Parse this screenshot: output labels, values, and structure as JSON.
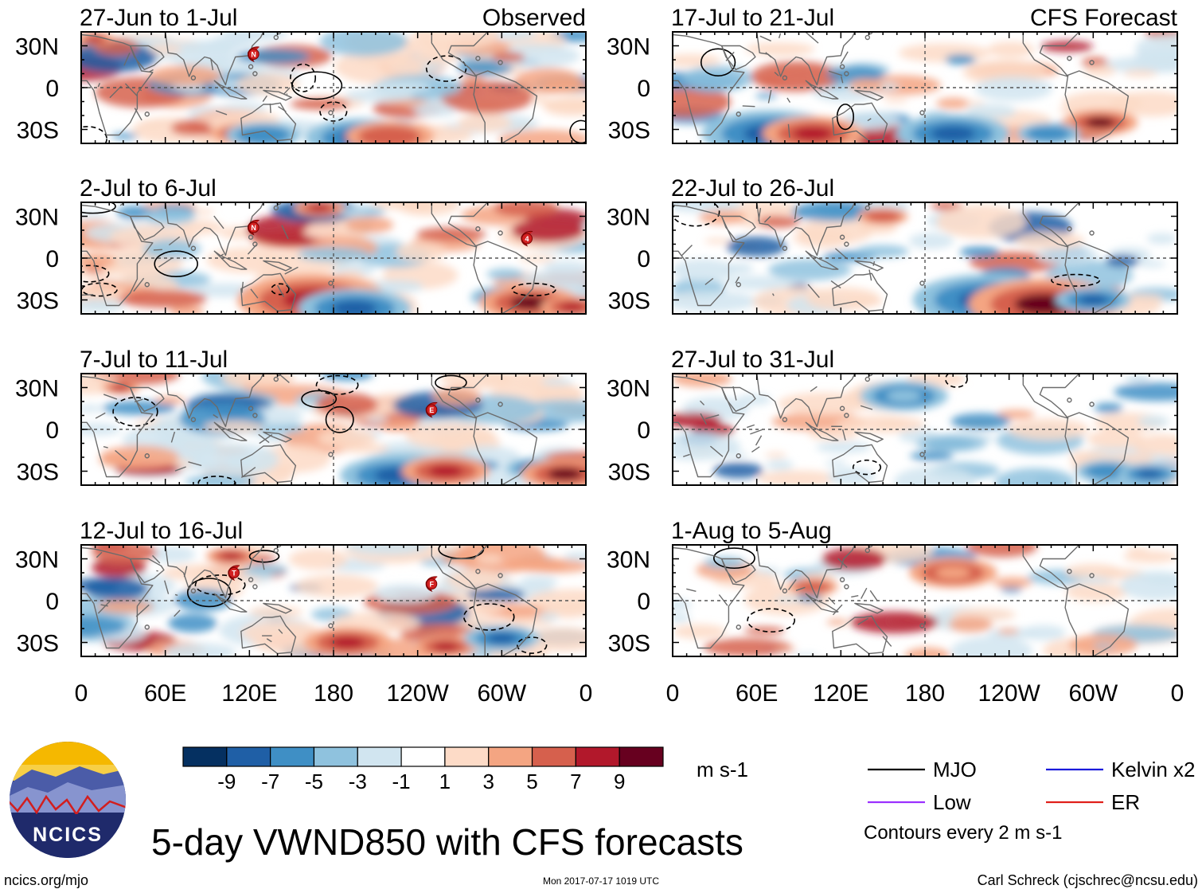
{
  "figure": {
    "main_title": "5-day VWND850 with CFS forecasts",
    "units": "m s-1",
    "left_column_label": "Observed",
    "right_column_label": "CFS Forecast",
    "site_url": "ncics.org/mjo",
    "timestamp": "Mon 2017-07-17 1019 UTC",
    "author": "Carl Schreck (cjschrec@ncsu.edu)",
    "logo_text": "NCICS"
  },
  "axes": {
    "lat_ticks": [
      "30N",
      "0",
      "30S"
    ],
    "lon_ticks": [
      "0",
      "60E",
      "120E",
      "180",
      "120W",
      "60W",
      "0"
    ]
  },
  "panels": {
    "left": [
      {
        "title": "27-Jun to 1-Jul",
        "storms": [
          "N"
        ]
      },
      {
        "title": "2-Jul to 6-Jul",
        "storms": [
          "N",
          "4"
        ]
      },
      {
        "title": "7-Jul to 11-Jul",
        "storms": [
          "E"
        ]
      },
      {
        "title": "12-Jul to 16-Jul",
        "storms": [
          "T",
          "F"
        ]
      }
    ],
    "right": [
      {
        "title": "17-Jul to 21-Jul"
      },
      {
        "title": "22-Jul to 26-Jul"
      },
      {
        "title": "27-Jul to 31-Jul"
      },
      {
        "title": "1-Aug to 5-Aug"
      }
    ]
  },
  "colorbar": {
    "labels": [
      "-9",
      "-7",
      "-5",
      "-3",
      "-1",
      "1",
      "3",
      "5",
      "7",
      "9"
    ],
    "colors": [
      "#053061",
      "#1f5fa6",
      "#3f8fc5",
      "#8fc2de",
      "#d1e5f0",
      "#ffffff",
      "#fddbc7",
      "#f4a582",
      "#d6604d",
      "#b2182b",
      "#67001f"
    ]
  },
  "legend": {
    "items": [
      {
        "label": "MJO",
        "color": "#000000"
      },
      {
        "label": "Kelvin x2",
        "color": "#1a1adc"
      },
      {
        "label": "Low",
        "color": "#9b30ff"
      },
      {
        "label": "ER",
        "color": "#e0201b"
      }
    ],
    "note": "Contours every 2 m s-1"
  }
}
